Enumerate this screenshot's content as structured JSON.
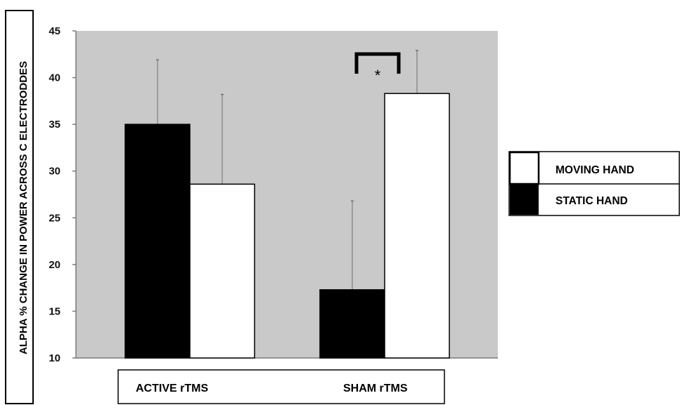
{
  "chart_data": {
    "type": "bar",
    "title": "",
    "xlabel": "",
    "ylabel": "ALPHA % CHANGE IN POWER ACROSS C ELECTRODDES",
    "ylim": [
      10,
      45
    ],
    "yticks": [
      10,
      15,
      20,
      25,
      30,
      35,
      40,
      45
    ],
    "ytick_labels": [
      "10",
      "15",
      "20",
      "25",
      "30",
      "35",
      "40",
      "45"
    ],
    "categories": [
      "ACTIVE rTMS",
      "SHAM rTMS"
    ],
    "series": [
      {
        "name": "STATIC HAND",
        "color": "#000000",
        "values": [
          35.0,
          17.3
        ],
        "error": [
          6.9,
          9.5
        ]
      },
      {
        "name": "MOVING HAND",
        "color": "#ffffff",
        "values": [
          28.6,
          38.3
        ],
        "error": [
          9.6,
          4.6
        ]
      }
    ],
    "annotations": [
      {
        "text": "*",
        "between": [
          "SHAM rTMS: STATIC HAND",
          "SHAM rTMS: MOVING HAND"
        ]
      }
    ],
    "legend_order": [
      "MOVING HAND",
      "STATIC HAND"
    ],
    "legend_position": "right",
    "plot_background": "#c9c9c9",
    "grid": false
  }
}
